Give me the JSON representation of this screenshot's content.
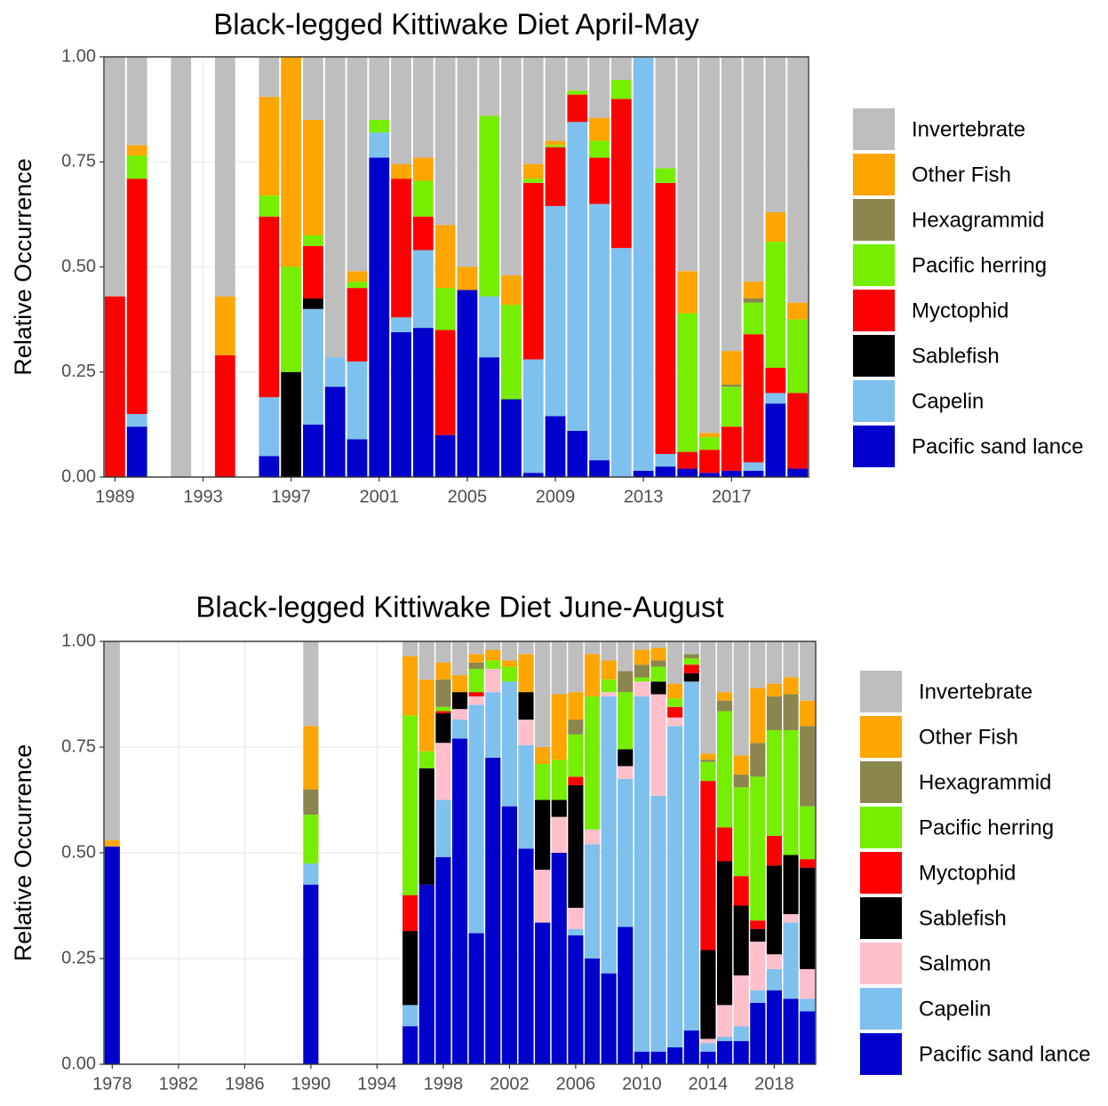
{
  "chart_data": [
    {
      "type": "bar",
      "stacked": true,
      "title": "Black-legged Kittiwake Diet April-May",
      "y_label": "Relative Occurrence",
      "grid": true,
      "legend": "right",
      "x": [
        1989,
        1990,
        1992,
        1994,
        1996,
        1997,
        1998,
        1999,
        2000,
        2001,
        2002,
        2003,
        2004,
        2005,
        2006,
        2007,
        2008,
        2009,
        2010,
        2011,
        2012,
        2013,
        2014,
        2015,
        2016,
        2017,
        2018,
        2019,
        2020
      ],
      "xlim": [
        1988.5,
        2020.5
      ],
      "xticks": [
        1989,
        1993,
        1997,
        2001,
        2005,
        2009,
        2013,
        2017
      ],
      "ylim": [
        0,
        1
      ],
      "yticks": [
        {
          "value": 0,
          "label": "0.00"
        },
        {
          "value": 0.25,
          "label": "0.25"
        },
        {
          "value": 0.5,
          "label": "0.50"
        },
        {
          "value": 0.75,
          "label": "0.75"
        },
        {
          "value": 1,
          "label": "1.00"
        }
      ],
      "series": [
        {
          "name": "Pacific sand lance",
          "color": "#0000cd",
          "values": [
            0,
            0.12,
            0,
            0,
            0.05,
            0,
            0.125,
            0.215,
            0.09,
            0.76,
            0.345,
            0.355,
            0.1,
            0.445,
            0.285,
            0.185,
            0.01,
            0.145,
            0.11,
            0.04,
            0,
            0.015,
            0.025,
            0.02,
            0.01,
            0.015,
            0.015,
            0.175,
            0.02
          ]
        },
        {
          "name": "Capelin",
          "color": "#7ec0ee",
          "values": [
            0,
            0.03,
            0,
            0,
            0.14,
            0,
            0.275,
            0.07,
            0.185,
            0.06,
            0.035,
            0.185,
            0,
            0,
            0.145,
            0,
            0.27,
            0.5,
            0.735,
            0.61,
            0.545,
            0.985,
            0.03,
            0,
            0,
            0,
            0.02,
            0.025,
            0
          ]
        },
        {
          "name": "Sablefish",
          "color": "#000000",
          "values": [
            0,
            0,
            0,
            0,
            0,
            0.25,
            0.025,
            0,
            0,
            0,
            0,
            0,
            0,
            0,
            0,
            0,
            0,
            0,
            0,
            0,
            0,
            0,
            0,
            0,
            0,
            0,
            0,
            0,
            0
          ]
        },
        {
          "name": "Myctophid",
          "color": "#ff0000",
          "values": [
            0.43,
            0.56,
            0,
            0.29,
            0.43,
            0,
            0.125,
            0,
            0.175,
            0,
            0.33,
            0.08,
            0.25,
            0,
            0,
            0,
            0.42,
            0.14,
            0.065,
            0.11,
            0.355,
            0,
            0.645,
            0.04,
            0.055,
            0.105,
            0.305,
            0.06,
            0.18
          ]
        },
        {
          "name": "Pacific herring",
          "color": "#76ee00",
          "values": [
            0,
            0.055,
            0,
            0,
            0.05,
            0.25,
            0.025,
            0,
            0.015,
            0.03,
            0,
            0.085,
            0.1,
            0,
            0.43,
            0.225,
            0.01,
            0.005,
            0.01,
            0.04,
            0.045,
            0,
            0.035,
            0.33,
            0.03,
            0.095,
            0.075,
            0.3,
            0.175
          ]
        },
        {
          "name": "Hexagrammid",
          "color": "#8b864e",
          "values": [
            0,
            0,
            0,
            0,
            0,
            0,
            0,
            0,
            0,
            0,
            0,
            0,
            0,
            0,
            0,
            0,
            0,
            0,
            0,
            0,
            0,
            0,
            0,
            0,
            0,
            0.005,
            0.01,
            0,
            0
          ]
        },
        {
          "name": "Other Fish",
          "color": "#ffa500",
          "values": [
            0,
            0.025,
            0,
            0.14,
            0.235,
            0.5,
            0.275,
            0,
            0.025,
            0,
            0.035,
            0.055,
            0.15,
            0.055,
            0,
            0.07,
            0.035,
            0.01,
            0,
            0.055,
            0,
            0,
            0,
            0.1,
            0.01,
            0.08,
            0.04,
            0.07,
            0.04
          ]
        },
        {
          "name": "Invertebrate",
          "color": "#bebebe",
          "values": [
            0.57,
            0.21,
            1,
            0.57,
            0.095,
            0,
            0.15,
            0.715,
            0.51,
            0.15,
            0.255,
            0.24,
            0.4,
            0.5,
            0.14,
            0.52,
            0.255,
            0.2,
            0.08,
            0.145,
            0.055,
            0,
            0.265,
            0.51,
            0.895,
            0.7,
            0.535,
            0.37,
            0.585
          ]
        }
      ]
    },
    {
      "type": "bar",
      "stacked": true,
      "title": "Black-legged Kittiwake Diet June-August",
      "y_label": "Relative Occurrence",
      "grid": true,
      "legend": "right",
      "x": [
        1978,
        1990,
        1996,
        1997,
        1998,
        1999,
        2000,
        2001,
        2002,
        2003,
        2004,
        2005,
        2006,
        2007,
        2008,
        2009,
        2010,
        2011,
        2012,
        2013,
        2014,
        2015,
        2016,
        2017,
        2018,
        2019,
        2020
      ],
      "xlim": [
        1977.5,
        2020.5
      ],
      "xticks": [
        1978,
        1982,
        1986,
        1990,
        1994,
        1998,
        2002,
        2006,
        2010,
        2014,
        2018
      ],
      "ylim": [
        0,
        1
      ],
      "yticks": [
        {
          "value": 0,
          "label": "0.00"
        },
        {
          "value": 0.25,
          "label": "0.25"
        },
        {
          "value": 0.5,
          "label": "0.50"
        },
        {
          "value": 0.75,
          "label": "0.75"
        },
        {
          "value": 1,
          "label": "1.00"
        }
      ],
      "series": [
        {
          "name": "Pacific sand lance",
          "color": "#0000cd",
          "values": [
            0.515,
            0.425,
            0.09,
            0.425,
            0.49,
            0.77,
            0.31,
            0.725,
            0.61,
            0.51,
            0.335,
            0.5,
            0.305,
            0.25,
            0.215,
            0.325,
            0.03,
            0.03,
            0.04,
            0.08,
            0.03,
            0.055,
            0.055,
            0.145,
            0.175,
            0.155,
            0.125
          ]
        },
        {
          "name": "Capelin",
          "color": "#7ec0ee",
          "values": [
            0,
            0.05,
            0.05,
            0,
            0.135,
            0.045,
            0.54,
            0.155,
            0.295,
            0.245,
            0,
            0,
            0.015,
            0.27,
            0.655,
            0.35,
            0.84,
            0.605,
            0.76,
            0.825,
            0.02,
            0.01,
            0.035,
            0.03,
            0.05,
            0.18,
            0.03
          ]
        },
        {
          "name": "Salmon",
          "color": "#ffc0cb",
          "values": [
            0,
            0,
            0,
            0,
            0.135,
            0.025,
            0.02,
            0.055,
            0,
            0.06,
            0.125,
            0.085,
            0.05,
            0.035,
            0.01,
            0.03,
            0.035,
            0.24,
            0.02,
            0,
            0.01,
            0.075,
            0.12,
            0.115,
            0.035,
            0.02,
            0.07
          ]
        },
        {
          "name": "Sablefish",
          "color": "#000000",
          "values": [
            0,
            0,
            0.175,
            0.275,
            0.07,
            0.04,
            0,
            0,
            0,
            0.065,
            0.165,
            0.04,
            0.29,
            0,
            0,
            0.04,
            0,
            0.03,
            0,
            0.02,
            0.21,
            0.34,
            0.165,
            0.03,
            0.21,
            0.14,
            0.24
          ]
        },
        {
          "name": "Myctophid",
          "color": "#ff0000",
          "values": [
            0,
            0,
            0.085,
            0,
            0.005,
            0,
            0.01,
            0,
            0,
            0,
            0,
            0,
            0.02,
            0,
            0,
            0,
            0,
            0,
            0.025,
            0.02,
            0.4,
            0.08,
            0.07,
            0.02,
            0.07,
            0,
            0.02
          ]
        },
        {
          "name": "Pacific herring",
          "color": "#76ee00",
          "values": [
            0,
            0.115,
            0.425,
            0.04,
            0.01,
            0,
            0.055,
            0.02,
            0.035,
            0,
            0.085,
            0.095,
            0.1,
            0.315,
            0.03,
            0.135,
            0.01,
            0.035,
            0.02,
            0.015,
            0.045,
            0.275,
            0.21,
            0.34,
            0.25,
            0.295,
            0.125
          ]
        },
        {
          "name": "Hexagrammid",
          "color": "#8b864e",
          "values": [
            0,
            0.06,
            0,
            0,
            0.065,
            0,
            0.015,
            0,
            0,
            0,
            0,
            0,
            0.035,
            0,
            0,
            0.05,
            0.03,
            0.015,
            0,
            0.01,
            0.005,
            0.025,
            0.03,
            0.08,
            0.08,
            0.085,
            0.19
          ]
        },
        {
          "name": "Other Fish",
          "color": "#ffa500",
          "values": [
            0.015,
            0.15,
            0.14,
            0.17,
            0.04,
            0.04,
            0.02,
            0.025,
            0.015,
            0.09,
            0.04,
            0.155,
            0.065,
            0.1,
            0.045,
            0,
            0.035,
            0.03,
            0.035,
            0,
            0.015,
            0.02,
            0.045,
            0.13,
            0.03,
            0.04,
            0.06
          ]
        },
        {
          "name": "Invertebrate",
          "color": "#bebebe",
          "values": [
            0.47,
            0.2,
            0.035,
            0.09,
            0.05,
            0.08,
            0.03,
            0.02,
            0.045,
            0.03,
            0.25,
            0.125,
            0.12,
            0.03,
            0.045,
            0.07,
            0.02,
            0.015,
            0.1,
            0.03,
            0.265,
            0.12,
            0.27,
            0.11,
            0.1,
            0.085,
            0.14
          ]
        }
      ]
    }
  ]
}
